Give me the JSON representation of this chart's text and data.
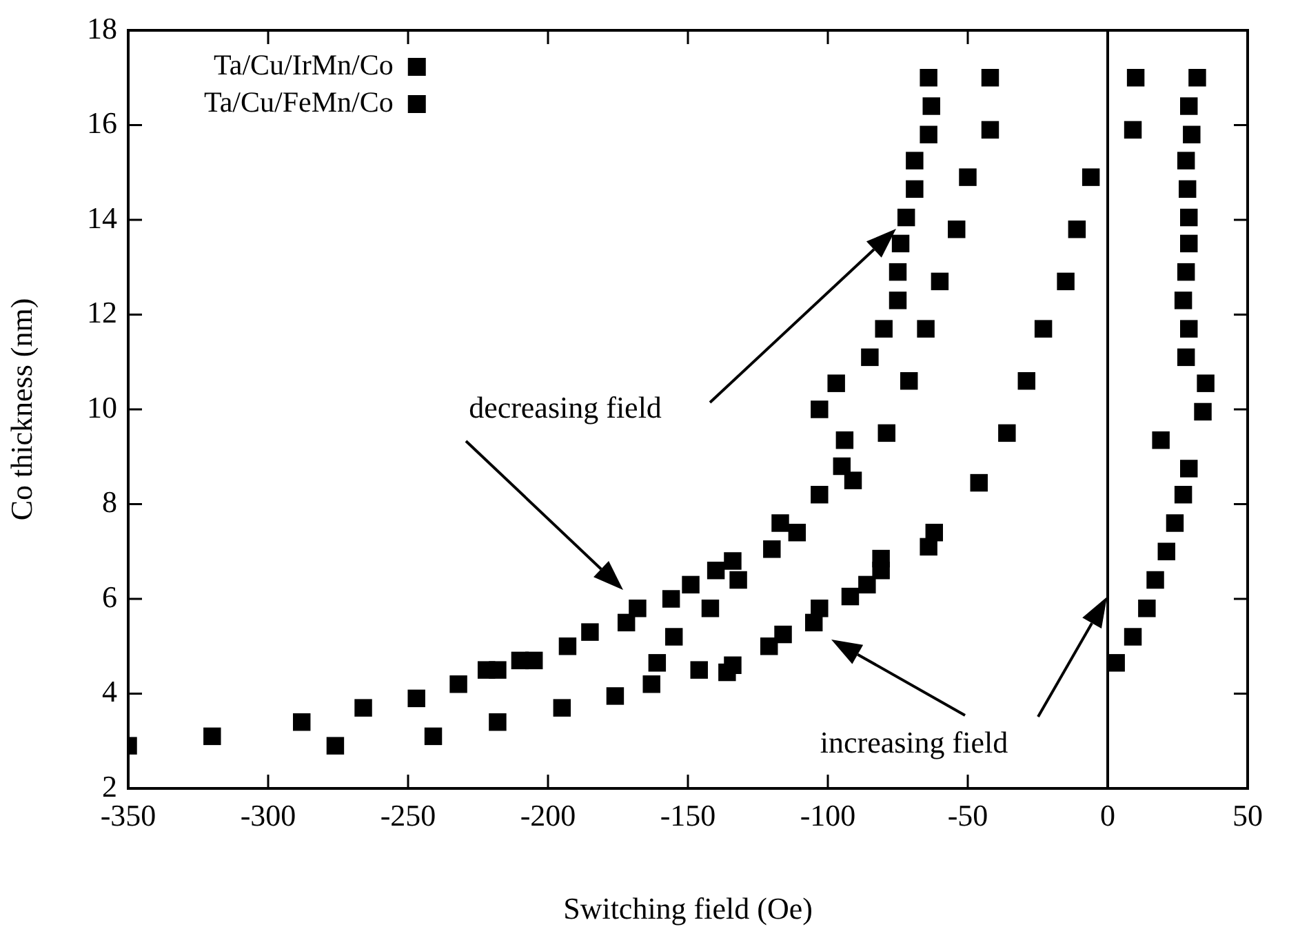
{
  "chart_data": {
    "type": "scatter",
    "xlabel": "Switching field (Oe)",
    "ylabel": "Co thickness (nm)",
    "xlim": [
      -350,
      50
    ],
    "xticks": [
      -350,
      -300,
      -250,
      -200,
      -150,
      -100,
      -50,
      0,
      50
    ],
    "ylim": [
      2,
      18
    ],
    "yticks": [
      2,
      4,
      6,
      8,
      10,
      12,
      14,
      16,
      18
    ],
    "grid": false,
    "legend": "top left",
    "marker": "square",
    "ref_lines": [
      {
        "axis": "x",
        "value": 0,
        "color": "#000000"
      }
    ],
    "annotations": [
      "decreasing field",
      "increasing field"
    ],
    "series": [
      {
        "name": "Ta/Cu/IrMn/Co",
        "color": "#000000",
        "x": [
          -350,
          -320,
          -288,
          -266,
          -247,
          -232,
          -222,
          -218,
          -210,
          -205,
          -193,
          -185,
          -172,
          -168,
          -156,
          -149,
          -140,
          -134,
          -117,
          -103,
          -95,
          -94,
          -103,
          -97,
          -85,
          -80,
          -75,
          -75,
          -74,
          -72,
          -69,
          -69,
          -64,
          -63,
          -64,
          3,
          9,
          14,
          17,
          21,
          24,
          27,
          29,
          19,
          34,
          35,
          28,
          29,
          27,
          28,
          29,
          29,
          28.5,
          28,
          30,
          29,
          32
        ],
        "values": [
          2.9,
          3.1,
          3.4,
          3.7,
          3.9,
          4.2,
          4.5,
          4.5,
          4.7,
          4.7,
          5.0,
          5.3,
          5.5,
          5.8,
          6.0,
          6.3,
          6.6,
          6.8,
          7.6,
          8.2,
          8.8,
          9.35,
          10.0,
          10.55,
          11.1,
          11.7,
          12.3,
          12.9,
          13.5,
          14.05,
          14.65,
          15.25,
          15.8,
          16.4,
          17.0,
          4.65,
          5.2,
          5.8,
          6.4,
          7.0,
          7.6,
          8.2,
          8.75,
          9.35,
          9.95,
          10.55,
          11.1,
          11.7,
          12.3,
          12.9,
          13.5,
          14.05,
          14.65,
          15.25,
          15.8,
          16.4,
          17.0
        ]
      },
      {
        "name": "Ta/Cu/FeMn/Co",
        "color": "#000000",
        "x": [
          -276,
          -241,
          -218,
          -195,
          -176,
          -163,
          -161,
          -155,
          -142,
          -132,
          -120,
          -111,
          -91,
          -79,
          -71,
          -65,
          -60,
          -54,
          -50,
          -42,
          -42,
          -146,
          -136,
          -134,
          -121,
          -116,
          -105,
          -103,
          -92,
          -86,
          -81,
          -81,
          -64,
          -62,
          -46,
          -36,
          -29,
          -23,
          -15,
          -11,
          -6,
          9,
          10
        ],
        "values": [
          2.9,
          3.1,
          3.4,
          3.7,
          3.95,
          4.2,
          4.65,
          5.2,
          5.8,
          6.4,
          7.05,
          7.4,
          8.5,
          9.5,
          10.6,
          11.7,
          12.7,
          13.8,
          14.9,
          15.9,
          17.0,
          4.5,
          4.45,
          4.6,
          5.0,
          5.25,
          5.5,
          5.8,
          6.05,
          6.3,
          6.6,
          6.85,
          7.1,
          7.4,
          8.45,
          9.5,
          10.6,
          11.7,
          12.7,
          13.8,
          14.9,
          15.9,
          17.0
        ]
      }
    ]
  }
}
